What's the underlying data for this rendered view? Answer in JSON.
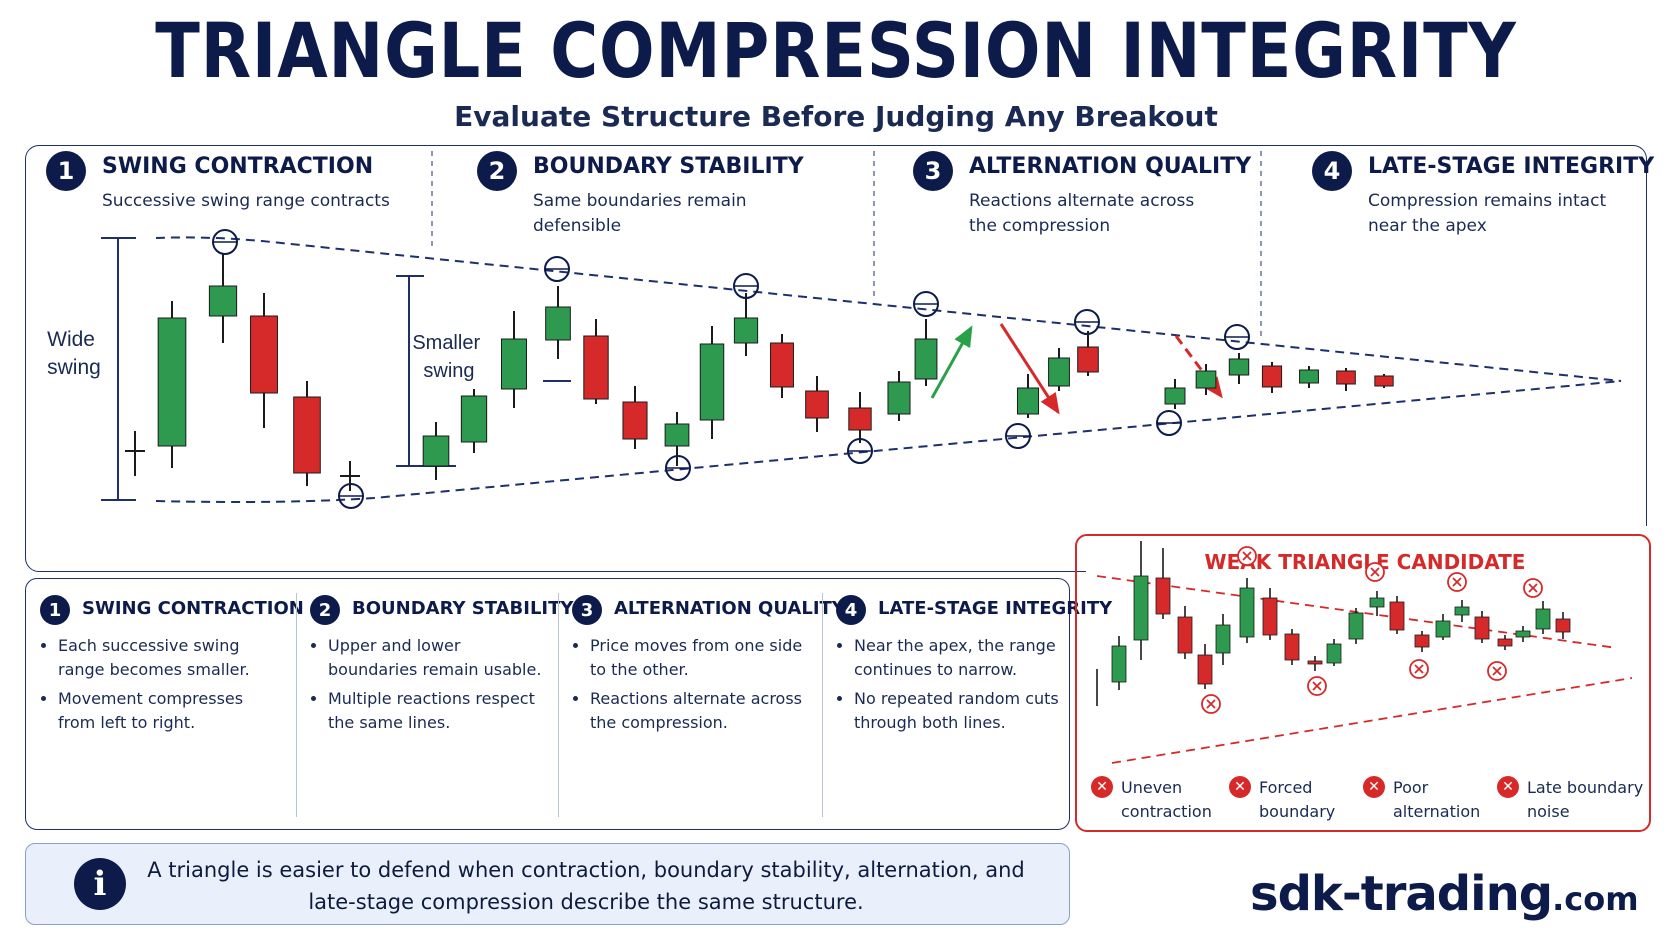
{
  "title": "TRIANGLE COMPRESSION INTEGRITY",
  "subtitle": "Evaluate Structure Before Judging Any Breakout",
  "steps": [
    {
      "num": "1",
      "title": "SWING CONTRACTION",
      "desc": "Successive swing range contracts"
    },
    {
      "num": "2",
      "title": "BOUNDARY STABILITY",
      "desc": "Same boundaries remain defensible"
    },
    {
      "num": "3",
      "title": "ALTERNATION QUALITY",
      "desc": "Reactions alternate across the compression"
    },
    {
      "num": "4",
      "title": "LATE-STAGE INTEGRITY",
      "desc": "Compression remains intact near the apex"
    }
  ],
  "chart_labels": {
    "wide": "Wide swing",
    "smaller": "Smaller swing"
  },
  "colors": {
    "navy": "#0d1b4a",
    "green": "#2e9a4f",
    "red": "#d62a2a",
    "up_arrow": "#2aa04a",
    "down_arrow": "#d62a2a"
  },
  "details": [
    {
      "num": "1",
      "title": "SWING CONTRACTION",
      "bullets": [
        "Each successive swing range becomes smaller.",
        "Movement compresses from left to right."
      ]
    },
    {
      "num": "2",
      "title": "BOUNDARY STABILITY",
      "bullets": [
        "Upper and lower boundaries remain usable.",
        "Multiple reactions respect the same lines."
      ]
    },
    {
      "num": "3",
      "title": "ALTERNATION QUALITY",
      "bullets": [
        "Price moves from one side to the other.",
        "Reactions alternate across the compression."
      ]
    },
    {
      "num": "4",
      "title": "LATE-STAGE INTEGRITY",
      "bullets": [
        "Near the apex, the range continues to narrow.",
        "No repeated random cuts through both lines."
      ]
    }
  ],
  "weak": {
    "title": "WEAK TRIANGLE CANDIDATE",
    "items": [
      {
        "icon": "✕",
        "label": "Uneven contraction"
      },
      {
        "icon": "✕",
        "label": "Forced boundary"
      },
      {
        "icon": "✕",
        "label": "Poor alternation"
      },
      {
        "icon": "✕",
        "label": "Late boundary noise"
      }
    ]
  },
  "info": {
    "icon": "i",
    "text": "A triangle is easier to defend when contraction, boundary stability, alternation, and late-stage compression describe the same structure."
  },
  "brand": {
    "main": "sdk-trading",
    "suffix": ".com"
  }
}
